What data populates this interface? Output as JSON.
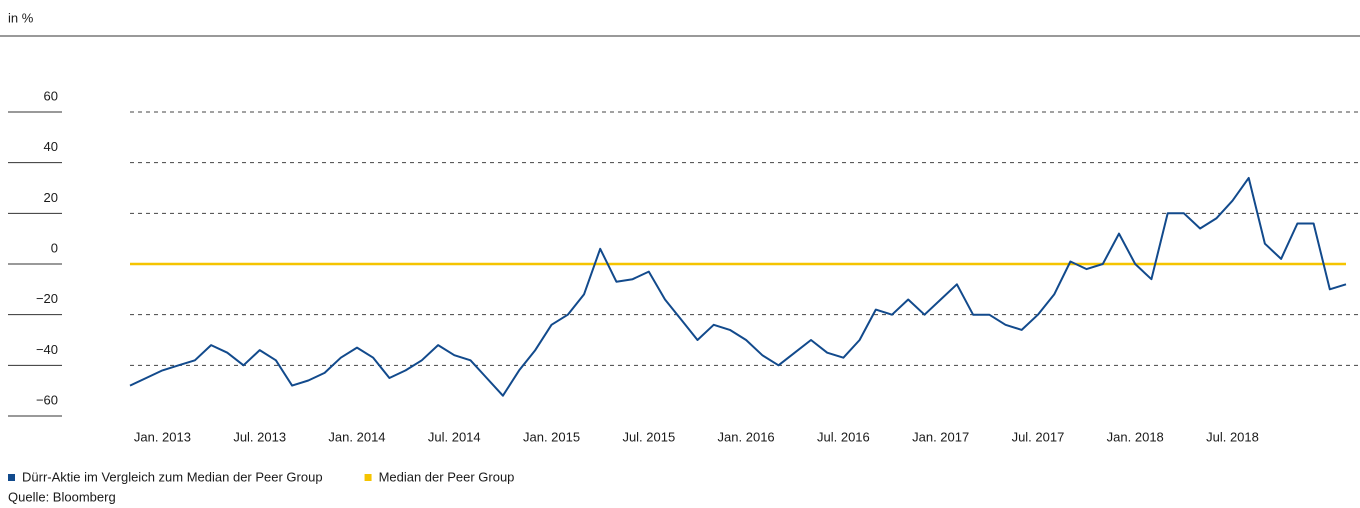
{
  "chart_data": {
    "type": "line",
    "unit_label": "in %",
    "x": [
      "2012-11",
      "2012-12",
      "2013-01",
      "2013-02",
      "2013-03",
      "2013-04",
      "2013-05",
      "2013-06",
      "2013-07",
      "2013-08",
      "2013-09",
      "2013-10",
      "2013-11",
      "2013-12",
      "2014-01",
      "2014-02",
      "2014-03",
      "2014-04",
      "2014-05",
      "2014-06",
      "2014-07",
      "2014-08",
      "2014-09",
      "2014-10",
      "2014-11",
      "2014-12",
      "2015-01",
      "2015-02",
      "2015-03",
      "2015-04",
      "2015-05",
      "2015-06",
      "2015-07",
      "2015-08",
      "2015-09",
      "2015-10",
      "2015-11",
      "2015-12",
      "2016-01",
      "2016-02",
      "2016-03",
      "2016-04",
      "2016-05",
      "2016-06",
      "2016-07",
      "2016-08",
      "2016-09",
      "2016-10",
      "2016-11",
      "2016-12",
      "2017-01",
      "2017-02",
      "2017-03",
      "2017-04",
      "2017-05",
      "2017-06",
      "2017-07",
      "2017-08",
      "2017-09",
      "2017-10",
      "2017-11",
      "2017-12",
      "2018-01",
      "2018-02",
      "2018-03",
      "2018-04",
      "2018-05",
      "2018-06",
      "2018-07",
      "2018-08",
      "2018-09",
      "2018-10",
      "2018-11",
      "2018-12",
      "2019-01",
      "2019-02"
    ],
    "series": [
      {
        "name": "Dürr-Aktie im Vergleich zum Median der Peer Group",
        "color": "#124a8c",
        "values": [
          -48,
          -45,
          -42,
          -40,
          -38,
          -32,
          -35,
          -40,
          -34,
          -38,
          -48,
          -46,
          -43,
          -37,
          -33,
          -37,
          -45,
          -42,
          -38,
          -32,
          -36,
          -38,
          -45,
          -52,
          -42,
          -34,
          -24,
          -20,
          -12,
          6,
          -7,
          -6,
          -3,
          -14,
          -22,
          -30,
          -24,
          -26,
          -30,
          -36,
          -40,
          -35,
          -30,
          -35,
          -37,
          -30,
          -18,
          -20,
          -14,
          -20,
          -14,
          -8,
          -20,
          -20,
          -24,
          -26,
          -20,
          -12,
          1,
          -2,
          0,
          12,
          0,
          -6,
          20,
          20,
          14,
          18,
          25,
          34,
          8,
          2,
          16,
          16,
          -10,
          -8
        ]
      },
      {
        "name": "Median der Peer Group",
        "color": "#f5c400",
        "values": [
          0,
          0,
          0,
          0,
          0,
          0,
          0,
          0,
          0,
          0,
          0,
          0,
          0,
          0,
          0,
          0,
          0,
          0,
          0,
          0,
          0,
          0,
          0,
          0,
          0,
          0,
          0,
          0,
          0,
          0,
          0,
          0,
          0,
          0,
          0,
          0,
          0,
          0,
          0,
          0,
          0,
          0,
          0,
          0,
          0,
          0,
          0,
          0,
          0,
          0,
          0,
          0,
          0,
          0,
          0,
          0,
          0,
          0,
          0,
          0,
          0,
          0,
          0,
          0,
          0,
          0,
          0,
          0,
          0,
          0,
          0,
          0,
          0,
          0,
          0,
          0
        ]
      }
    ],
    "xlim": [
      "2012-11",
      "2019-02"
    ],
    "xticks": [
      {
        "value": "2013-01",
        "label": "Jan. 2013"
      },
      {
        "value": "2013-07",
        "label": "Jul. 2013"
      },
      {
        "value": "2014-01",
        "label": "Jan. 2014"
      },
      {
        "value": "2014-07",
        "label": "Jul. 2014"
      },
      {
        "value": "2015-01",
        "label": "Jan. 2015"
      },
      {
        "value": "2015-07",
        "label": "Jul. 2015"
      },
      {
        "value": "2016-01",
        "label": "Jan. 2016"
      },
      {
        "value": "2016-07",
        "label": "Jul. 2016"
      },
      {
        "value": "2017-01",
        "label": "Jan. 2017"
      },
      {
        "value": "2017-07",
        "label": "Jul. 2017"
      },
      {
        "value": "2018-01",
        "label": "Jan. 2018"
      },
      {
        "value": "2018-07",
        "label": "Jul. 2018"
      }
    ],
    "ylim": [
      -60,
      60
    ],
    "yticks": [
      {
        "value": -60,
        "label": "−60"
      },
      {
        "value": -40,
        "label": "−40"
      },
      {
        "value": -20,
        "label": "−20"
      },
      0,
      20,
      40,
      60
    ],
    "grid": true,
    "source": "Quelle: Bloomberg"
  }
}
